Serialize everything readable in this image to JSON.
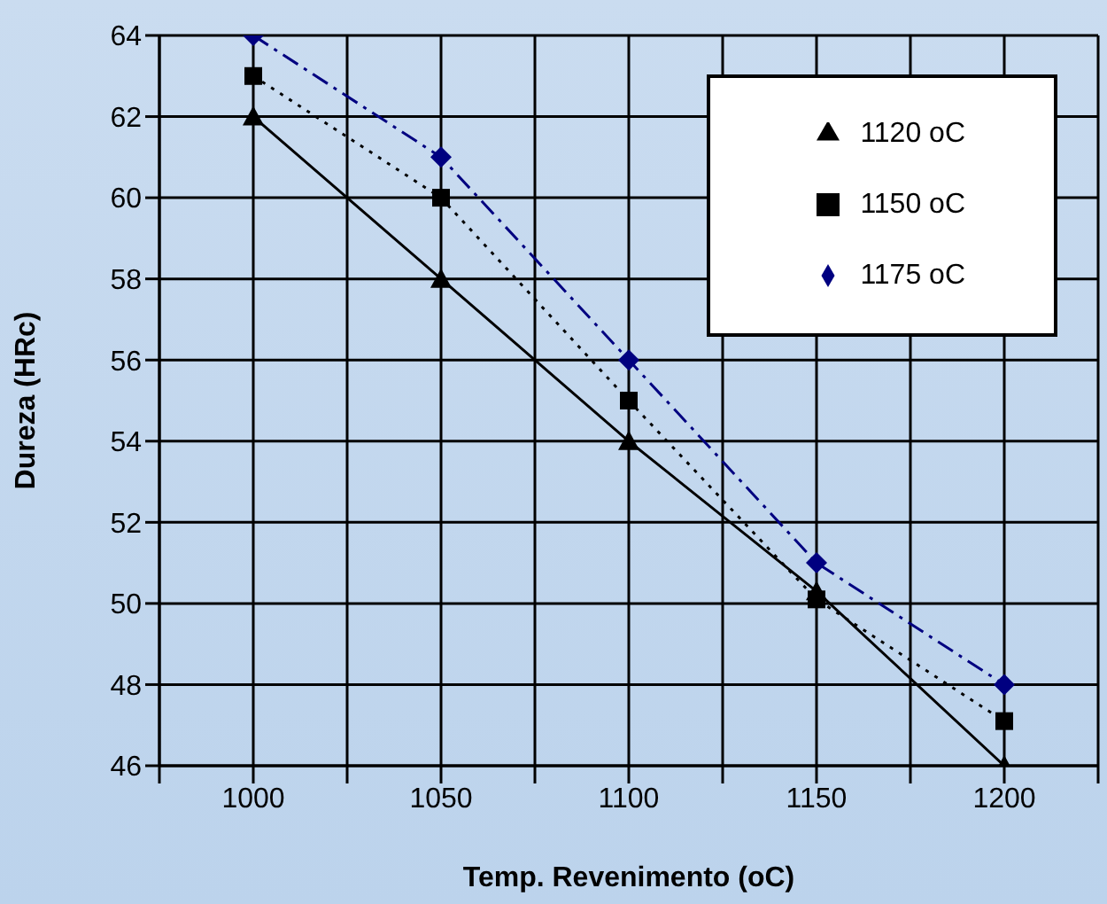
{
  "chart_data": {
    "type": "line",
    "xlabel": "Temp. Revenimento (oC)",
    "ylabel": "Dureza (HRc)",
    "x": [
      1000,
      1050,
      1100,
      1150,
      1200
    ],
    "series": [
      {
        "name": "1175 oC",
        "color": "#000080",
        "values": [
          64,
          61,
          56,
          51,
          48
        ],
        "marker": "diamond",
        "line_style": "dashdot"
      },
      {
        "name": "1150 oC",
        "color": "#000000",
        "values": [
          63,
          60,
          55,
          50.1,
          47.1
        ],
        "marker": "square",
        "line_style": "dotted"
      },
      {
        "name": "1120 oC",
        "color": "#000000",
        "values": [
          62,
          58,
          54,
          50.3,
          46
        ],
        "marker": "triangle",
        "line_style": "solid"
      }
    ],
    "xlim": [
      975,
      1225
    ],
    "xticks": [
      {
        "value": 975,
        "label": null
      },
      1000,
      {
        "value": 1025,
        "label": null
      },
      1050,
      {
        "value": 1075,
        "label": null
      },
      1100,
      {
        "value": 1125,
        "label": null
      },
      1150,
      {
        "value": 1175,
        "label": null
      },
      1200,
      {
        "value": 1225,
        "label": null
      }
    ],
    "ylim": [
      46,
      64
    ],
    "yticks": [
      46,
      48,
      50,
      52,
      54,
      56,
      58,
      60,
      62,
      64
    ],
    "grid": true,
    "legend": "top right"
  }
}
